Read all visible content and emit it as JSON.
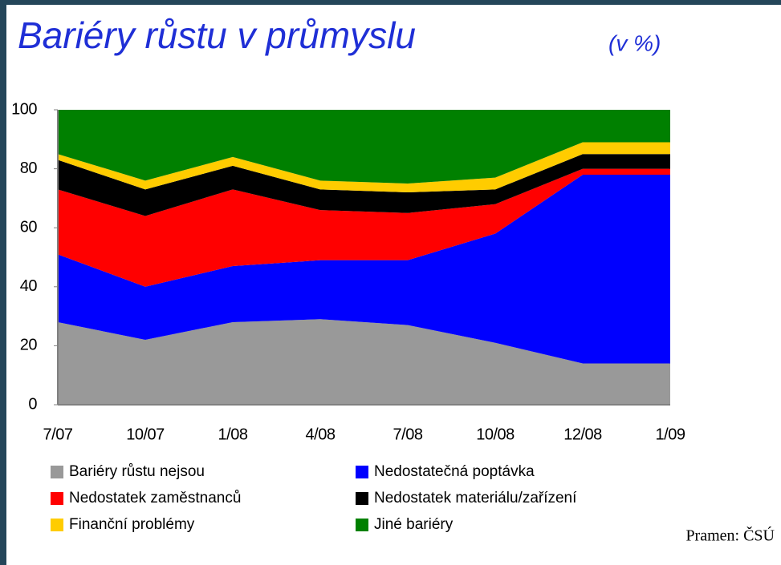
{
  "chart_data": {
    "type": "stacked-area",
    "title": "Bariéry růstu v průmyslu",
    "subtitle": "(v %)",
    "source": "Pramen: ČSÚ",
    "categories": [
      "7/07",
      "10/07",
      "1/08",
      "4/08",
      "7/08",
      "10/08",
      "12/08",
      "1/09"
    ],
    "series": [
      {
        "name": "Bariéry růstu nejsou",
        "color": "#999999",
        "values": [
          28,
          22,
          28,
          29,
          27,
          21,
          14,
          14
        ]
      },
      {
        "name": "Nedostatečná poptávka",
        "color": "#0000ff",
        "values": [
          23,
          18,
          19,
          20,
          22,
          37,
          64,
          64
        ]
      },
      {
        "name": "Nedostatek zaměstnanců",
        "color": "#ff0000",
        "values": [
          22,
          24,
          26,
          17,
          16,
          10,
          2,
          2
        ]
      },
      {
        "name": "Nedostatek materiálu/zařízení",
        "color": "#000000",
        "values": [
          10,
          9,
          8,
          7,
          7,
          5,
          5,
          5
        ]
      },
      {
        "name": "Finanční problémy",
        "color": "#ffcc00",
        "values": [
          2,
          3,
          3,
          3,
          3,
          4,
          4,
          4
        ]
      },
      {
        "name": "Jiné bariéry",
        "color": "#008000",
        "values": [
          15,
          24,
          16,
          24,
          25,
          23,
          11,
          11
        ]
      }
    ],
    "ylim": [
      0,
      100
    ],
    "yticks": [
      0,
      20,
      40,
      60,
      80,
      100
    ],
    "grid": false
  }
}
